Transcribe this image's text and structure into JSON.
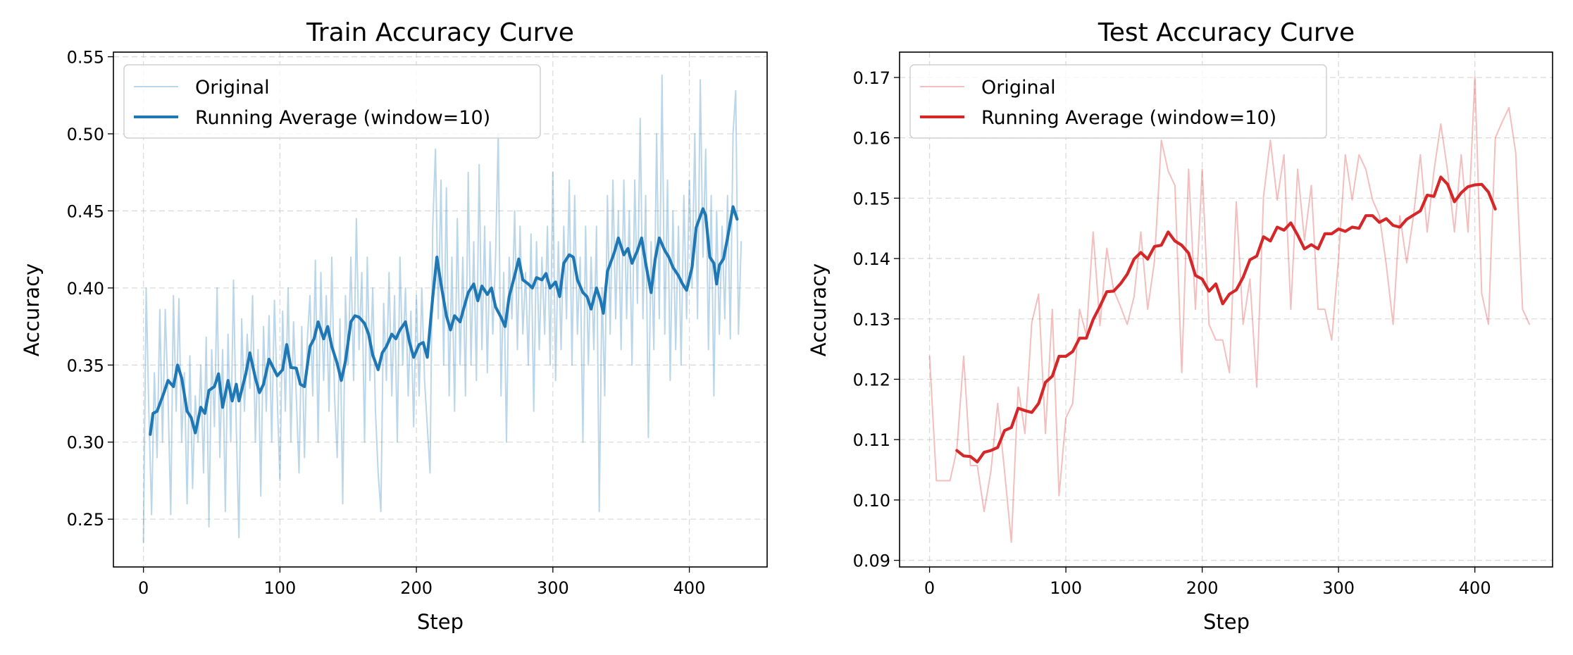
{
  "chart_data": [
    {
      "type": "line",
      "title": "Train Accuracy Curve",
      "xlabel": "Step",
      "ylabel": "Accuracy",
      "xlim": [
        -22,
        457
      ],
      "ylim": [
        0.219,
        0.553
      ],
      "xticks": [
        "0",
        "100",
        "200",
        "300",
        "400"
      ],
      "yticks": [
        "0.25",
        "0.30",
        "0.35",
        "0.40",
        "0.45",
        "0.50",
        "0.55"
      ],
      "grid": true,
      "legend_position": "top-left",
      "series": [
        {
          "name": "Original",
          "color": "#1f77b4",
          "opacity": 0.3,
          "x_start": 0,
          "x_step": 2,
          "y": [
            0.235,
            0.4,
            0.318,
            0.253,
            0.345,
            0.29,
            0.386,
            0.3,
            0.386,
            0.33,
            0.253,
            0.395,
            0.32,
            0.393,
            0.3,
            0.345,
            0.26,
            0.356,
            0.27,
            0.33,
            0.3,
            0.35,
            0.28,
            0.368,
            0.245,
            0.36,
            0.31,
            0.4,
            0.29,
            0.36,
            0.255,
            0.37,
            0.3,
            0.405,
            0.31,
            0.238,
            0.38,
            0.32,
            0.37,
            0.335,
            0.395,
            0.3,
            0.36,
            0.265,
            0.375,
            0.32,
            0.382,
            0.3,
            0.392,
            0.33,
            0.275,
            0.385,
            0.32,
            0.4,
            0.3,
            0.378,
            0.33,
            0.28,
            0.375,
            0.29,
            0.365,
            0.395,
            0.33,
            0.418,
            0.3,
            0.41,
            0.34,
            0.395,
            0.32,
            0.42,
            0.33,
            0.29,
            0.38,
            0.26,
            0.395,
            0.35,
            0.42,
            0.34,
            0.445,
            0.36,
            0.41,
            0.3,
            0.42,
            0.34,
            0.4,
            0.32,
            0.28,
            0.255,
            0.39,
            0.34,
            0.41,
            0.33,
            0.395,
            0.3,
            0.42,
            0.35,
            0.4,
            0.33,
            0.385,
            0.31,
            0.395,
            0.33,
            0.4,
            0.34,
            0.31,
            0.28,
            0.44,
            0.49,
            0.38,
            0.47,
            0.35,
            0.465,
            0.33,
            0.42,
            0.32,
            0.445,
            0.35,
            0.42,
            0.33,
            0.475,
            0.35,
            0.43,
            0.34,
            0.48,
            0.36,
            0.44,
            0.345,
            0.43,
            0.37,
            0.42,
            0.5,
            0.33,
            0.41,
            0.3,
            0.42,
            0.38,
            0.45,
            0.36,
            0.44,
            0.37,
            0.41,
            0.35,
            0.435,
            0.32,
            0.43,
            0.36,
            0.42,
            0.37,
            0.44,
            0.35,
            0.475,
            0.34,
            0.43,
            0.36,
            0.44,
            0.38,
            0.47,
            0.35,
            0.46,
            0.37,
            0.42,
            0.3,
            0.44,
            0.35,
            0.42,
            0.36,
            0.44,
            0.255,
            0.4,
            0.33,
            0.46,
            0.37,
            0.47,
            0.38,
            0.45,
            0.36,
            0.47,
            0.38,
            0.45,
            0.35,
            0.47,
            0.39,
            0.51,
            0.38,
            0.46,
            0.303,
            0.43,
            0.36,
            0.5,
            0.38,
            0.538,
            0.37,
            0.47,
            0.34,
            0.45,
            0.36,
            0.44,
            0.35,
            0.46,
            0.38,
            0.47,
            0.4,
            0.5,
            0.38,
            0.535,
            0.42,
            0.49,
            0.36,
            0.46,
            0.33,
            0.45,
            0.37,
            0.44,
            0.38,
            0.46,
            0.367,
            0.5,
            0.528,
            0.37,
            0.43
          ]
        },
        {
          "name": "Running Average (window=10)",
          "color": "#1f77b4",
          "opacity": 1,
          "x": [
            5,
            7,
            10,
            15,
            18,
            22,
            25,
            28,
            32,
            35,
            38,
            42,
            45,
            48,
            52,
            55,
            58,
            62,
            65,
            68,
            70,
            75,
            78,
            82,
            85,
            88,
            92,
            95,
            98,
            102,
            105,
            108,
            112,
            115,
            118,
            122,
            125,
            128,
            132,
            135,
            138,
            142,
            145,
            148,
            152,
            155,
            158,
            162,
            165,
            168,
            172,
            175,
            178,
            182,
            185,
            188,
            192,
            195,
            198,
            202,
            205,
            208,
            212,
            215,
            218,
            222,
            225,
            228,
            232,
            235,
            238,
            242,
            245,
            248,
            252,
            255,
            258,
            262,
            265,
            268,
            272,
            275,
            278,
            282,
            285,
            288,
            292,
            295,
            298,
            302,
            305,
            308,
            312,
            315,
            318,
            322,
            325,
            328,
            332,
            335,
            337,
            340,
            345,
            348,
            352,
            355,
            358,
            362,
            365,
            368,
            372,
            375,
            378,
            382,
            385,
            388,
            392,
            395,
            398,
            402,
            405,
            410,
            412,
            415,
            418,
            420,
            422,
            425,
            428,
            432,
            435
          ],
          "y": [
            0.305,
            0.3186,
            0.32,
            0.332,
            0.34,
            0.336,
            0.35,
            0.3416,
            0.32,
            0.3159,
            0.306,
            0.3226,
            0.3186,
            0.3335,
            0.336,
            0.3443,
            0.3226,
            0.34,
            0.3267,
            0.3375,
            0.3267,
            0.3443,
            0.3579,
            0.3416,
            0.3321,
            0.3375,
            0.3538,
            0.3484,
            0.343,
            0.347,
            0.3633,
            0.3484,
            0.348,
            0.3375,
            0.336,
            0.362,
            0.367,
            0.378,
            0.367,
            0.375,
            0.362,
            0.351,
            0.34,
            0.3524,
            0.378,
            0.382,
            0.381,
            0.377,
            0.37,
            0.3565,
            0.347,
            0.358,
            0.362,
            0.37,
            0.367,
            0.3728,
            0.378,
            0.3646,
            0.355,
            0.3633,
            0.3646,
            0.355,
            0.394,
            0.42,
            0.4026,
            0.382,
            0.3728,
            0.382,
            0.378,
            0.3877,
            0.397,
            0.4026,
            0.3917,
            0.4012,
            0.3958,
            0.4,
            0.3877,
            0.381,
            0.375,
            0.3944,
            0.408,
            0.4188,
            0.4053,
            0.4026,
            0.4,
            0.4067,
            0.4053,
            0.4094,
            0.4,
            0.4039,
            0.3944,
            0.416,
            0.4215,
            0.42,
            0.4053,
            0.397,
            0.3944,
            0.3863,
            0.4,
            0.3917,
            0.3836,
            0.4107,
            0.4229,
            0.4324,
            0.4215,
            0.4256,
            0.416,
            0.4243,
            0.4324,
            0.416,
            0.397,
            0.4188,
            0.4324,
            0.4243,
            0.42,
            0.4134,
            0.408,
            0.4026,
            0.3985,
            0.4134,
            0.4392,
            0.4514,
            0.447,
            0.42,
            0.416,
            0.4026,
            0.4148,
            0.4188,
            0.4324,
            0.4527,
            0.4446
          ]
        }
      ]
    },
    {
      "type": "line",
      "title": "Test Accuracy Curve",
      "xlabel": "Step",
      "ylabel": "Accuracy",
      "xlim": [
        -22,
        457
      ],
      "ylim": [
        0.0889,
        0.1742
      ],
      "xticks": [
        "0",
        "100",
        "200",
        "300",
        "400"
      ],
      "yticks": [
        "0.09",
        "0.10",
        "0.11",
        "0.12",
        "0.13",
        "0.14",
        "0.15",
        "0.16",
        "0.17"
      ],
      "grid": true,
      "legend_position": "top-left",
      "series": [
        {
          "name": "Original",
          "color": "#d62728",
          "opacity": 0.3,
          "x_start": 0,
          "x_step": 5,
          "y": [
            0.1238,
            0.1032,
            0.1032,
            0.1032,
            0.1083,
            0.1238,
            0.1057,
            0.1057,
            0.0981,
            0.1048,
            0.116,
            0.1048,
            0.093,
            0.1187,
            0.111,
            0.1294,
            0.1341,
            0.111,
            0.1316,
            0.1007,
            0.1136,
            0.116,
            0.1316,
            0.1273,
            0.1444,
            0.1289,
            0.1417,
            0.1348,
            0.1321,
            0.1291,
            0.1337,
            0.1444,
            0.1316,
            0.1396,
            0.1596,
            0.1545,
            0.1521,
            0.1211,
            0.1548,
            0.1316,
            0.1548,
            0.1291,
            0.1265,
            0.1265,
            0.1211,
            0.1494,
            0.1291,
            0.1366,
            0.1187,
            0.1503,
            0.1596,
            0.1497,
            0.1572,
            0.1316,
            0.1548,
            0.143,
            0.1521,
            0.1316,
            0.1316,
            0.1265,
            0.1401,
            0.1572,
            0.1497,
            0.1572,
            0.1548,
            0.1497,
            0.1471,
            0.139,
            0.1291,
            0.1471,
            0.1393,
            0.1471,
            0.1572,
            0.1444,
            0.1545,
            0.1623,
            0.1545,
            0.1444,
            0.1572,
            0.1444,
            0.1701,
            0.1342,
            0.1291,
            0.16,
            0.1626,
            0.165,
            0.1575,
            0.1316,
            0.1291
          ]
        },
        {
          "name": "Running Average (window=10)",
          "color": "#d62728",
          "opacity": 1,
          "x_start": 20,
          "x_step": 5,
          "y": [
            0.1082,
            0.1073,
            0.1072,
            0.1063,
            0.1079,
            0.1082,
            0.1087,
            0.1115,
            0.112,
            0.1152,
            0.1148,
            0.1145,
            0.116,
            0.1195,
            0.1205,
            0.1238,
            0.1238,
            0.1246,
            0.1268,
            0.1268,
            0.1299,
            0.1321,
            0.1345,
            0.1346,
            0.1358,
            0.1374,
            0.1399,
            0.141,
            0.1399,
            0.142,
            0.1422,
            0.1444,
            0.1429,
            0.1422,
            0.1409,
            0.1372,
            0.1366,
            0.1346,
            0.1358,
            0.1325,
            0.1341,
            0.1348,
            0.1369,
            0.1398,
            0.1404,
            0.1436,
            0.1429,
            0.1452,
            0.1447,
            0.1459,
            0.1439,
            0.1416,
            0.1423,
            0.1416,
            0.1441,
            0.1441,
            0.1449,
            0.1445,
            0.1452,
            0.145,
            0.1471,
            0.1471,
            0.146,
            0.1466,
            0.1455,
            0.1452,
            0.1465,
            0.1472,
            0.1479,
            0.1505,
            0.1503,
            0.1535,
            0.1523,
            0.1494,
            0.1509,
            0.1519,
            0.1522,
            0.1523,
            0.151,
            0.1482
          ]
        }
      ]
    }
  ]
}
